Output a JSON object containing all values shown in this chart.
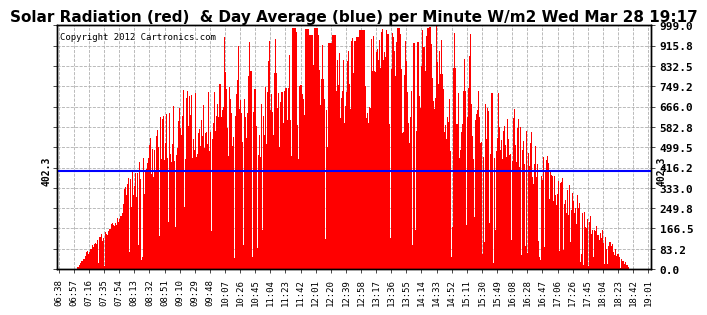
{
  "title": "Solar Radiation (red)  & Day Average (blue) per Minute W/m2 Wed Mar 28 19:17",
  "copyright_text": "Copyright 2012 Cartronics.com",
  "y_ticks": [
    0.0,
    83.2,
    166.5,
    249.8,
    333.0,
    416.2,
    499.5,
    582.8,
    666.0,
    749.2,
    832.5,
    915.8,
    999.0
  ],
  "avg_line_value": 402.3,
  "y_max": 999.0,
  "y_min": 0.0,
  "bar_color": "#ff0000",
  "avg_line_color": "#0000ff",
  "background_color": "#ffffff",
  "grid_color": "#b0b0b0",
  "title_fontsize": 11,
  "x_tick_labels": [
    "06:38",
    "06:57",
    "07:16",
    "07:35",
    "07:54",
    "08:13",
    "08:32",
    "08:51",
    "09:10",
    "09:29",
    "09:48",
    "10:07",
    "10:26",
    "10:45",
    "11:04",
    "11:23",
    "11:42",
    "12:01",
    "12:20",
    "12:39",
    "12:58",
    "13:17",
    "13:36",
    "13:55",
    "14:14",
    "14:33",
    "14:52",
    "15:11",
    "15:30",
    "15:49",
    "16:08",
    "16:28",
    "16:47",
    "17:06",
    "17:26",
    "17:45",
    "18:04",
    "18:23",
    "18:42",
    "19:01"
  ]
}
